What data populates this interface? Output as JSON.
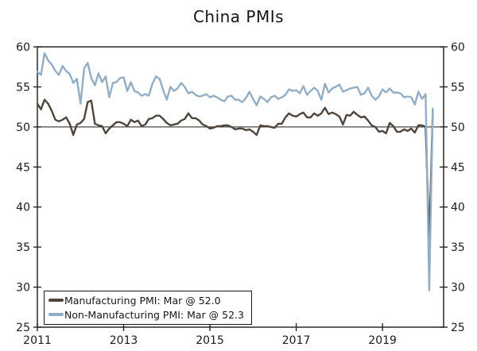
{
  "page": {
    "background": "#ffffff"
  },
  "chart_data": {
    "type": "line",
    "title": "China PMIs",
    "xlabel": "",
    "ylabel": "",
    "ylim": [
      25,
      60
    ],
    "y_ticks": [
      25,
      30,
      35,
      40,
      45,
      50,
      55,
      60
    ],
    "y_tick_label_sides": "both",
    "reference_line_y": 50,
    "grid": false,
    "legend_position": "bottom-left",
    "x_unit": "monthly",
    "x_start_year": 2011,
    "x_start_month": 1,
    "x_tick_years": [
      2011,
      2013,
      2015,
      2017,
      2019
    ],
    "x_axis_months_span": 113,
    "axis_color": "#1a1a1a",
    "text_color": "#1b1b22",
    "series": [
      {
        "name": "Manufacturing PMI",
        "legend_label": "Manufacturing PMI: Mar @ 52.0",
        "color": "#4F453C",
        "values": [
          52.9,
          52.2,
          53.4,
          52.9,
          52.0,
          50.9,
          50.7,
          50.9,
          51.2,
          50.4,
          49.0,
          50.3,
          50.5,
          51.0,
          53.1,
          53.3,
          50.4,
          50.2,
          50.1,
          49.2,
          49.8,
          50.2,
          50.6,
          50.6,
          50.4,
          50.1,
          50.9,
          50.6,
          50.8,
          50.1,
          50.3,
          51.0,
          51.1,
          51.4,
          51.4,
          51.0,
          50.5,
          50.2,
          50.3,
          50.4,
          50.8,
          51.0,
          51.7,
          51.1,
          51.1,
          50.8,
          50.3,
          50.1,
          49.8,
          49.9,
          50.1,
          50.1,
          50.2,
          50.2,
          50.0,
          49.7,
          49.8,
          49.8,
          49.6,
          49.7,
          49.4,
          49.0,
          50.2,
          50.1,
          50.1,
          50.0,
          49.9,
          50.4,
          50.4,
          51.2,
          51.7,
          51.4,
          51.3,
          51.6,
          51.8,
          51.2,
          51.2,
          51.7,
          51.4,
          51.7,
          52.4,
          51.6,
          51.8,
          51.6,
          51.3,
          50.3,
          51.5,
          51.4,
          51.9,
          51.5,
          51.2,
          51.3,
          50.8,
          50.2,
          50.0,
          49.4,
          49.5,
          49.2,
          50.5,
          50.1,
          49.4,
          49.4,
          49.7,
          49.5,
          49.8,
          49.3,
          50.2,
          50.2,
          50.0,
          35.7,
          52.0
        ]
      },
      {
        "name": "Non-Manufacturing PMI",
        "legend_label": "Non-Manufacturing PMI: Mar @ 52.3",
        "color": "#93AEC4",
        "values": [
          56.9,
          56.5,
          59.2,
          58.3,
          57.8,
          57.0,
          56.5,
          57.6,
          57.0,
          56.6,
          55.5,
          56.0,
          52.9,
          57.3,
          58.0,
          56.1,
          55.2,
          56.7,
          55.6,
          56.3,
          53.7,
          55.5,
          55.6,
          56.1,
          56.2,
          54.5,
          55.6,
          54.5,
          54.3,
          53.9,
          54.1,
          53.9,
          55.4,
          56.3,
          56.0,
          54.6,
          53.4,
          55.0,
          54.5,
          54.8,
          55.5,
          55.0,
          54.2,
          54.4,
          54.0,
          53.8,
          53.9,
          54.1,
          53.7,
          53.9,
          53.7,
          53.4,
          53.2,
          53.8,
          53.9,
          53.4,
          53.4,
          53.1,
          53.6,
          54.4,
          53.5,
          52.7,
          53.8,
          53.5,
          53.1,
          53.7,
          53.9,
          53.5,
          53.7,
          54.0,
          54.7,
          54.5,
          54.6,
          54.2,
          55.1,
          54.0,
          54.5,
          54.9,
          54.5,
          53.4,
          55.4,
          54.3,
          54.8,
          55.0,
          55.3,
          54.4,
          54.6,
          54.8,
          54.9,
          55.0,
          54.0,
          54.2,
          54.9,
          53.9,
          53.4,
          53.8,
          54.7,
          54.3,
          54.8,
          54.3,
          54.3,
          54.2,
          53.7,
          53.8,
          53.7,
          52.8,
          54.4,
          53.5,
          54.1,
          29.6,
          52.3
        ]
      }
    ]
  }
}
